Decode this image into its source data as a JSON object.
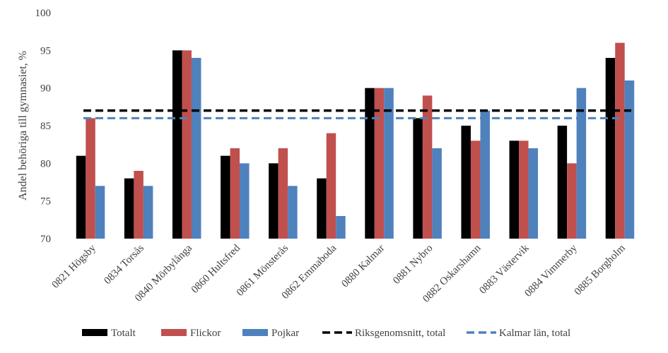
{
  "chart_data": {
    "type": "bar",
    "ylabel": "Andel behöriga till gymnasiet, %",
    "ylim": [
      70,
      100
    ],
    "yticks": [
      70,
      75,
      80,
      85,
      90,
      95,
      100
    ],
    "grid": false,
    "legend_position": "bottom",
    "categories": [
      "0821 Högsby",
      "0834 Torsås",
      "0840 Mörbylånga",
      "0860 Hultsfred",
      "0861 Mönsterås",
      "0862 Emmaboda",
      "0880 Kalmar",
      "0881 Nybro",
      "0882 Oskarshamn",
      "0883 Västervik",
      "0884 Vimmerby",
      "0885 Borgholm"
    ],
    "series": [
      {
        "name": "Totalt",
        "color": "#000000",
        "values": [
          81,
          78,
          95,
          81,
          80,
          78,
          90,
          86,
          85,
          83,
          85,
          94
        ]
      },
      {
        "name": "Flickor",
        "color": "#c0504d",
        "values": [
          86,
          79,
          95,
          82,
          82,
          84,
          90,
          89,
          83,
          83,
          80,
          96
        ]
      },
      {
        "name": "Pojkar",
        "color": "#4f81bd",
        "values": [
          77,
          77,
          94,
          80,
          77,
          73,
          90,
          82,
          87,
          82,
          90,
          91
        ]
      }
    ],
    "reference_lines": [
      {
        "name": "Riksgenomsnitt, total",
        "color": "#000000",
        "value": 87
      },
      {
        "name": "Kalmar län, total",
        "color": "#4f81bd",
        "value": 86
      }
    ]
  }
}
